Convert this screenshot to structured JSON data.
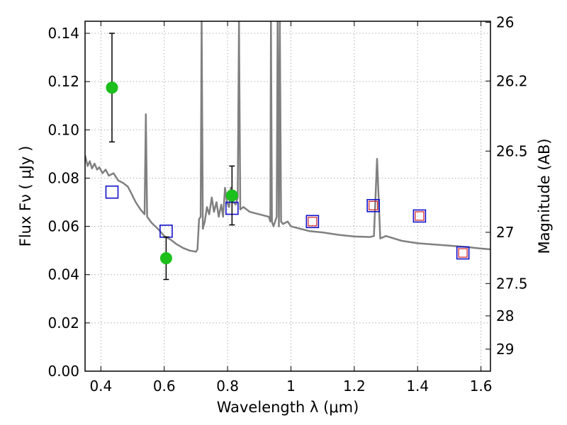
{
  "chart_data": {
    "type": "scatter",
    "xlabel": "Wavelength  λ (μm)",
    "ylabel": "Flux  Fν  ( μJy )",
    "ylabel2": "Magnitude (AB)",
    "xlim": [
      0.35,
      1.63
    ],
    "ylim": [
      0.0,
      0.145
    ],
    "grid": true,
    "x_ticks": [
      0.4,
      0.6,
      0.8,
      1.0,
      1.2,
      1.4,
      1.6
    ],
    "x_tick_labels": [
      "0.4",
      "0.6",
      "0.8",
      "1",
      "1.2",
      "1.4",
      "1.6"
    ],
    "y_ticks": [
      0.0,
      0.02,
      0.04,
      0.06,
      0.08,
      0.1,
      0.12,
      0.14
    ],
    "y_tick_labels": [
      "0.00",
      "0.02",
      "0.04",
      "0.06",
      "0.08",
      "0.10",
      "0.12",
      "0.14"
    ],
    "y2_ticks": [
      26,
      26.2,
      26.5,
      27,
      27.5,
      28,
      29
    ],
    "y2_tick_labels": [
      "26",
      "26.2",
      "26.5",
      "27",
      "27.5",
      "28",
      "29"
    ],
    "colors": {
      "model": "#808080",
      "observed": "#1cbf1c",
      "model_band": "#1010cc",
      "model_band_inner": "#d42020",
      "errorbar": "#000000",
      "grid": "#b0b0b0"
    },
    "observed": [
      {
        "x": 0.435,
        "y": 0.1175,
        "yerr_low": 0.0225,
        "yerr_high": 0.0225
      },
      {
        "x": 0.606,
        "y": 0.0468,
        "yerr_low": 0.0088,
        "yerr_high": 0.0088
      },
      {
        "x": 0.814,
        "y": 0.0728,
        "yerr_low": 0.0122,
        "yerr_high": 0.0122
      }
    ],
    "model_band_points": [
      {
        "x": 0.435,
        "y": 0.0742
      },
      {
        "x": 0.606,
        "y": 0.058
      },
      {
        "x": 0.814,
        "y": 0.0675
      },
      {
        "x": 1.068,
        "y": 0.062,
        "inner": true
      },
      {
        "x": 1.26,
        "y": 0.0686,
        "inner": true
      },
      {
        "x": 1.406,
        "y": 0.0643,
        "inner": true
      },
      {
        "x": 1.543,
        "y": 0.049,
        "inner": true
      }
    ],
    "model_spectrum": [
      [
        0.35,
        0.0895
      ],
      [
        0.358,
        0.085
      ],
      [
        0.365,
        0.087
      ],
      [
        0.372,
        0.084
      ],
      [
        0.38,
        0.086
      ],
      [
        0.388,
        0.0835
      ],
      [
        0.395,
        0.0845
      ],
      [
        0.405,
        0.082
      ],
      [
        0.415,
        0.0835
      ],
      [
        0.425,
        0.081
      ],
      [
        0.44,
        0.082
      ],
      [
        0.455,
        0.079
      ],
      [
        0.47,
        0.078
      ],
      [
        0.485,
        0.0765
      ],
      [
        0.495,
        0.074
      ],
      [
        0.51,
        0.07
      ],
      [
        0.525,
        0.067
      ],
      [
        0.538,
        0.065
      ],
      [
        0.542,
        0.1065
      ],
      [
        0.546,
        0.064
      ],
      [
        0.56,
        0.0615
      ],
      [
        0.58,
        0.059
      ],
      [
        0.6,
        0.056
      ],
      [
        0.62,
        0.0545
      ],
      [
        0.64,
        0.0525
      ],
      [
        0.66,
        0.051
      ],
      [
        0.68,
        0.05
      ],
      [
        0.7,
        0.0495
      ],
      [
        0.705,
        0.0505
      ],
      [
        0.71,
        0.063
      ],
      [
        0.715,
        0.064
      ],
      [
        0.718,
        0.145
      ],
      [
        0.722,
        0.059
      ],
      [
        0.728,
        0.062
      ],
      [
        0.735,
        0.068
      ],
      [
        0.742,
        0.065
      ],
      [
        0.75,
        0.072
      ],
      [
        0.757,
        0.066
      ],
      [
        0.765,
        0.07
      ],
      [
        0.772,
        0.064
      ],
      [
        0.78,
        0.069
      ],
      [
        0.786,
        0.064
      ],
      [
        0.792,
        0.076
      ],
      [
        0.798,
        0.07
      ],
      [
        0.805,
        0.068
      ],
      [
        0.81,
        0.076
      ],
      [
        0.818,
        0.07
      ],
      [
        0.826,
        0.069
      ],
      [
        0.832,
        0.072
      ],
      [
        0.836,
        0.145
      ],
      [
        0.84,
        0.067
      ],
      [
        0.85,
        0.068
      ],
      [
        0.87,
        0.066
      ],
      [
        0.9,
        0.065
      ],
      [
        0.93,
        0.064
      ],
      [
        0.935,
        0.062
      ],
      [
        0.937,
        0.145
      ],
      [
        0.94,
        0.062
      ],
      [
        0.945,
        0.06
      ],
      [
        0.955,
        0.064
      ],
      [
        0.958,
        0.145
      ],
      [
        0.962,
        0.06
      ],
      [
        0.965,
        0.145
      ],
      [
        0.969,
        0.062
      ],
      [
        0.975,
        0.061
      ],
      [
        0.99,
        0.062
      ],
      [
        1.0,
        0.06
      ],
      [
        1.03,
        0.059
      ],
      [
        1.06,
        0.058
      ],
      [
        1.1,
        0.0575
      ],
      [
        1.15,
        0.0565
      ],
      [
        1.2,
        0.0558
      ],
      [
        1.25,
        0.0556
      ],
      [
        1.262,
        0.056
      ],
      [
        1.272,
        0.088
      ],
      [
        1.282,
        0.055
      ],
      [
        1.3,
        0.056
      ],
      [
        1.35,
        0.054
      ],
      [
        1.4,
        0.053
      ],
      [
        1.45,
        0.0525
      ],
      [
        1.5,
        0.052
      ],
      [
        1.55,
        0.0515
      ],
      [
        1.6,
        0.0508
      ],
      [
        1.63,
        0.0505
      ]
    ]
  }
}
